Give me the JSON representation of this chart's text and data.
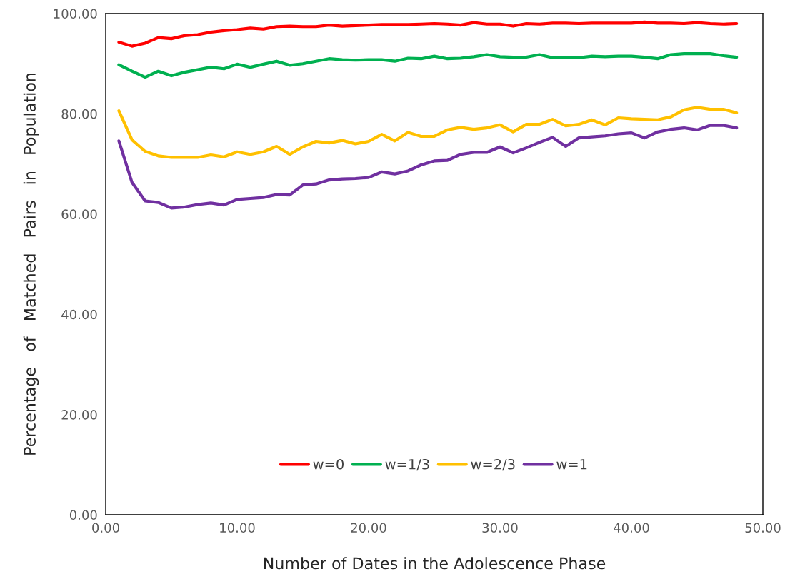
{
  "chart_data": {
    "type": "line",
    "xlabel": "Number of Dates in the Adolescence Phase",
    "ylabel": "Percentage   of   Matched   Pairs   in   Population",
    "x": [
      1,
      2,
      3,
      4,
      5,
      6,
      7,
      8,
      9,
      10,
      11,
      12,
      13,
      14,
      15,
      16,
      17,
      18,
      19,
      20,
      21,
      22,
      23,
      24,
      25,
      26,
      27,
      28,
      29,
      30,
      31,
      32,
      33,
      34,
      35,
      36,
      37,
      38,
      39,
      40,
      41,
      42,
      43,
      44,
      45,
      46,
      47,
      48
    ],
    "series": [
      {
        "name": "w=0",
        "color": "#ff0000",
        "values": [
          94.3,
          93.5,
          94.1,
          95.2,
          95.0,
          95.6,
          95.8,
          96.3,
          96.6,
          96.8,
          97.1,
          96.9,
          97.4,
          97.5,
          97.4,
          97.4,
          97.7,
          97.5,
          97.6,
          97.7,
          97.8,
          97.8,
          97.8,
          97.9,
          98.0,
          97.9,
          97.7,
          98.2,
          97.9,
          97.9,
          97.5,
          98.0,
          97.9,
          98.1,
          98.1,
          98.0,
          98.1,
          98.1,
          98.1,
          98.1,
          98.3,
          98.1,
          98.1,
          98.0,
          98.2,
          98.0,
          97.9,
          98.0
        ]
      },
      {
        "name": "w=1/3",
        "color": "#00b050",
        "values": [
          89.8,
          88.5,
          87.3,
          88.5,
          87.6,
          88.3,
          88.8,
          89.3,
          89.0,
          89.9,
          89.3,
          89.9,
          90.5,
          89.7,
          90.0,
          90.5,
          91.0,
          90.8,
          90.7,
          90.8,
          90.8,
          90.5,
          91.1,
          91.0,
          91.5,
          91.0,
          91.1,
          91.4,
          91.8,
          91.4,
          91.3,
          91.3,
          91.8,
          91.2,
          91.3,
          91.2,
          91.5,
          91.4,
          91.5,
          91.5,
          91.3,
          91.0,
          91.8,
          92.0,
          92.0,
          92.0,
          91.6,
          91.3
        ]
      },
      {
        "name": "w=2/3",
        "color": "#ffc000",
        "values": [
          80.6,
          74.8,
          72.5,
          71.6,
          71.3,
          71.3,
          71.3,
          71.8,
          71.4,
          72.4,
          71.9,
          72.4,
          73.5,
          71.9,
          73.4,
          74.5,
          74.2,
          74.7,
          74.0,
          74.5,
          75.9,
          74.6,
          76.3,
          75.5,
          75.5,
          76.8,
          77.3,
          76.9,
          77.2,
          77.8,
          76.4,
          77.9,
          77.9,
          78.9,
          77.6,
          77.9,
          78.8,
          77.8,
          79.2,
          79.0,
          78.9,
          78.8,
          79.4,
          80.8,
          81.3,
          80.9,
          80.9,
          80.2
        ]
      },
      {
        "name": "w=1",
        "color": "#7030a0",
        "values": [
          74.6,
          66.3,
          62.6,
          62.3,
          61.2,
          61.4,
          61.9,
          62.2,
          61.8,
          62.9,
          63.1,
          63.3,
          63.9,
          63.8,
          65.8,
          66.0,
          66.8,
          67.0,
          67.1,
          67.3,
          68.4,
          68.0,
          68.6,
          69.8,
          70.6,
          70.7,
          71.9,
          72.3,
          72.3,
          73.4,
          72.2,
          73.2,
          74.3,
          75.3,
          73.5,
          75.2,
          75.4,
          75.6,
          76.0,
          76.2,
          75.2,
          76.4,
          76.9,
          77.2,
          76.8,
          77.7,
          77.7,
          77.2
        ]
      }
    ],
    "xlim": [
      0,
      50
    ],
    "xticks": [
      {
        "value": 0,
        "label": "0.00"
      },
      {
        "value": 10,
        "label": "10.00"
      },
      {
        "value": 20,
        "label": "20.00"
      },
      {
        "value": 30,
        "label": "30.00"
      },
      {
        "value": 40,
        "label": "40.00"
      },
      {
        "value": 50,
        "label": "50.00"
      }
    ],
    "ylim": [
      0,
      100
    ],
    "yticks": [
      {
        "value": 0,
        "label": "0.00"
      },
      {
        "value": 20,
        "label": "20.00"
      },
      {
        "value": 40,
        "label": "40.00"
      },
      {
        "value": 60,
        "label": "60.00"
      },
      {
        "value": 80,
        "label": "80.00"
      },
      {
        "value": 100,
        "label": "100.00"
      }
    ],
    "grid": false,
    "legend": "bottom",
    "marker": "none",
    "line_style": "solid"
  }
}
